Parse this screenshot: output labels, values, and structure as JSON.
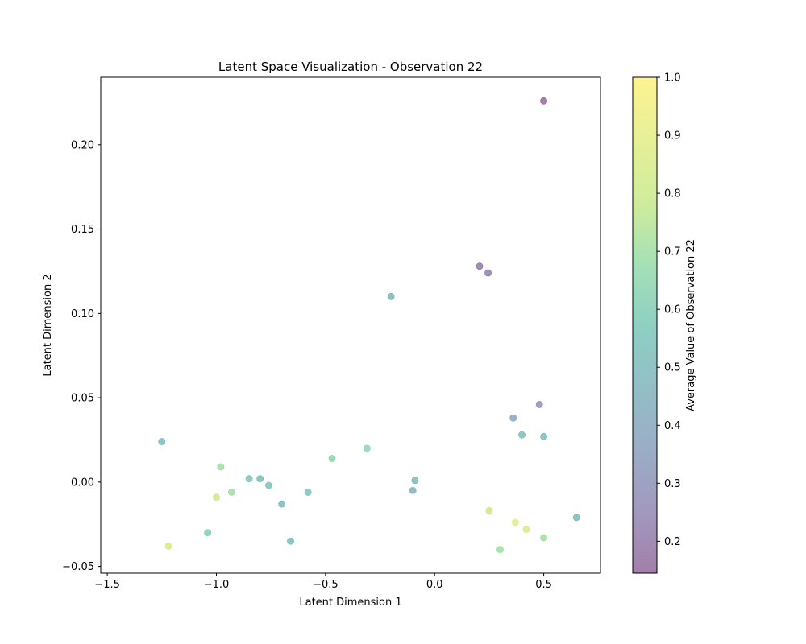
{
  "chart_data": {
    "type": "scatter",
    "title": "Latent Space Visualization - Observation 22",
    "xlabel": "Latent Dimension 1",
    "ylabel": "Latent Dimension 2",
    "xlim": [
      -1.53,
      0.76
    ],
    "ylim": [
      -0.054,
      0.24
    ],
    "xticks": [
      -1.5,
      -1.0,
      -0.5,
      0.0,
      0.5
    ],
    "xtick_labels": [
      "−1.5",
      "−1.0",
      "−0.5",
      "0.0",
      "0.5"
    ],
    "yticks": [
      -0.05,
      0.0,
      0.05,
      0.1,
      0.15,
      0.2
    ],
    "ytick_labels": [
      "−0.05",
      "0.00",
      "0.05",
      "0.10",
      "0.15",
      "0.20"
    ],
    "grid": false,
    "legend": "none",
    "marker_alpha": 0.5,
    "colormap": "viridis",
    "colorbar": {
      "label": "Average Value of Observation 22",
      "range": [
        0.145,
        1.0
      ],
      "ticks": [
        0.2,
        0.3,
        0.4,
        0.5,
        0.6,
        0.7,
        0.8,
        0.9,
        1.0
      ],
      "tick_labels": [
        "0.2",
        "0.3",
        "0.4",
        "0.5",
        "0.6",
        "0.7",
        "0.8",
        "0.9",
        "1.0"
      ]
    },
    "series": [
      {
        "points": [
          [
            0.5,
            0.226,
            0.15
          ],
          [
            0.206,
            0.128,
            0.2
          ],
          [
            0.245,
            0.124,
            0.22
          ],
          [
            0.48,
            0.046,
            0.3
          ],
          [
            -0.2,
            0.11,
            0.45
          ],
          [
            0.65,
            -0.021,
            0.5
          ],
          [
            0.3,
            -0.04,
            0.7
          ],
          [
            -0.66,
            -0.035,
            0.5
          ],
          [
            -1.04,
            -0.03,
            0.6
          ],
          [
            -1.22,
            -0.038,
            0.85
          ],
          [
            -0.7,
            -0.013,
            0.5
          ],
          [
            -0.58,
            -0.006,
            0.55
          ],
          [
            -0.93,
            -0.006,
            0.7
          ],
          [
            -1.0,
            -0.009,
            0.8
          ],
          [
            -0.85,
            0.002,
            0.55
          ],
          [
            -0.8,
            0.002,
            0.5
          ],
          [
            -0.76,
            -0.002,
            0.55
          ],
          [
            -0.47,
            0.014,
            0.65
          ],
          [
            -0.31,
            0.02,
            0.65
          ],
          [
            -0.1,
            -0.005,
            0.45
          ],
          [
            -0.09,
            0.001,
            0.5
          ],
          [
            0.25,
            -0.017,
            0.8
          ],
          [
            0.37,
            -0.024,
            0.9
          ],
          [
            0.42,
            -0.028,
            0.85
          ],
          [
            0.5,
            -0.033,
            0.7
          ],
          [
            -0.98,
            0.009,
            0.7
          ],
          [
            -1.25,
            0.024,
            0.5
          ],
          [
            0.4,
            0.028,
            0.5
          ],
          [
            0.36,
            0.038,
            0.4
          ],
          [
            0.5,
            0.027,
            0.5
          ]
        ]
      }
    ]
  }
}
